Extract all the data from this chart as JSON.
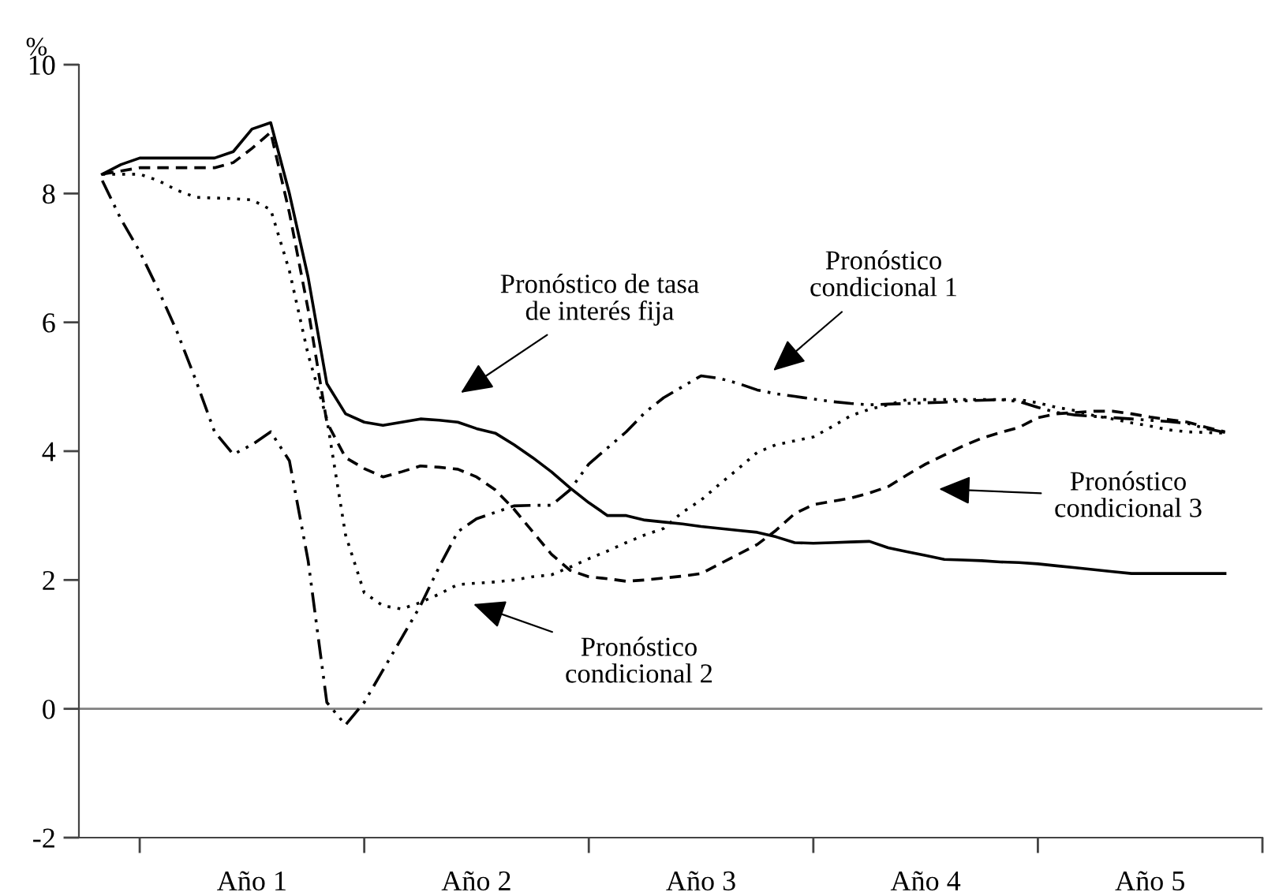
{
  "chart_data": {
    "type": "line",
    "ylabel": "%",
    "categories": [
      null,
      null,
      null,
      null,
      null,
      null,
      null,
      null,
      "Año 1",
      null,
      null,
      null,
      null,
      null,
      null,
      null,
      null,
      null,
      null,
      null,
      "Año 2",
      null,
      null,
      null,
      null,
      null,
      null,
      null,
      null,
      null,
      null,
      null,
      "Año 3",
      null,
      null,
      null,
      null,
      null,
      null,
      null,
      null,
      null,
      null,
      null,
      "Año 4",
      null,
      null,
      null,
      null,
      null,
      null,
      null,
      null,
      null,
      null,
      null,
      "Año 5",
      null,
      null,
      null,
      null
    ],
    "ylim": [
      -2,
      10
    ],
    "yticks": [
      -2,
      0,
      2,
      4,
      6,
      8,
      10
    ],
    "grid": false,
    "marker": "none",
    "ref_lines": [
      {
        "axis": "y",
        "value": 0,
        "color": "#808080"
      }
    ],
    "series": [
      {
        "color": "#000000",
        "line_style": "solid",
        "values": [
          8.3,
          8.45,
          8.55,
          8.55,
          8.55,
          8.55,
          8.55,
          8.65,
          9.0,
          9.1,
          8.0,
          6.7,
          5.05,
          4.58,
          4.45,
          4.4,
          4.45,
          4.5,
          4.48,
          4.45,
          4.35,
          4.28,
          4.1,
          3.9,
          3.68,
          3.43,
          3.2,
          3.0,
          3.0,
          2.93,
          2.9,
          2.87,
          2.83,
          2.8,
          2.77,
          2.74,
          2.67,
          2.58,
          2.57,
          2.58,
          2.59,
          2.6,
          2.5,
          2.44,
          2.38,
          2.32,
          2.31,
          2.3,
          2.28,
          2.27,
          2.25,
          2.22,
          2.19,
          2.16,
          2.13,
          2.1,
          2.1,
          2.1,
          2.1,
          2.1,
          2.1
        ]
      },
      {
        "color": "#000000",
        "line_style": "dashed",
        "values": [
          8.3,
          8.35,
          8.4,
          8.4,
          8.4,
          8.4,
          8.4,
          8.48,
          8.7,
          8.95,
          7.7,
          6.2,
          4.45,
          3.9,
          3.73,
          3.6,
          3.68,
          3.77,
          3.75,
          3.72,
          3.6,
          3.4,
          3.1,
          2.75,
          2.4,
          2.15,
          2.05,
          2.02,
          1.98,
          2.0,
          2.03,
          2.06,
          2.1,
          2.25,
          2.4,
          2.55,
          2.77,
          3.03,
          3.17,
          3.22,
          3.27,
          3.35,
          3.45,
          3.63,
          3.8,
          3.94,
          4.08,
          4.2,
          4.29,
          4.37,
          4.52,
          4.58,
          4.6,
          4.62,
          4.62,
          4.58,
          4.53,
          4.49,
          4.45,
          4.37,
          4.3
        ]
      },
      {
        "color": "#000000",
        "line_style": "dotted",
        "values": [
          8.3,
          8.3,
          8.3,
          8.2,
          8.05,
          7.94,
          7.93,
          7.92,
          7.9,
          7.75,
          6.8,
          5.5,
          4.5,
          2.7,
          1.8,
          1.6,
          1.55,
          1.65,
          1.78,
          1.93,
          1.95,
          1.97,
          2.0,
          2.05,
          2.08,
          2.2,
          2.33,
          2.45,
          2.58,
          2.7,
          2.8,
          3.05,
          3.24,
          3.49,
          3.73,
          3.98,
          4.1,
          4.16,
          4.22,
          4.38,
          4.55,
          4.65,
          4.72,
          4.8,
          4.8,
          4.8,
          4.8,
          4.8,
          4.8,
          4.8,
          4.75,
          4.68,
          4.63,
          4.55,
          4.5,
          4.44,
          4.39,
          4.33,
          4.3,
          4.29,
          4.28
        ]
      },
      {
        "color": "#000000",
        "line_style": "dashdotdot",
        "values": [
          8.2,
          7.6,
          7.1,
          6.5,
          5.85,
          5.1,
          4.3,
          3.95,
          4.1,
          4.3,
          3.85,
          2.3,
          0.1,
          -0.25,
          0.1,
          0.6,
          1.1,
          1.6,
          2.2,
          2.75,
          2.95,
          3.05,
          3.15,
          3.16,
          3.16,
          3.4,
          3.8,
          4.05,
          4.3,
          4.6,
          4.83,
          5.0,
          5.17,
          5.13,
          5.05,
          4.95,
          4.89,
          4.85,
          4.81,
          4.77,
          4.74,
          4.72,
          4.73,
          4.74,
          4.75,
          4.76,
          4.78,
          4.79,
          4.8,
          4.77,
          4.68,
          4.6,
          4.56,
          4.54,
          4.52,
          4.5,
          4.48,
          4.46,
          4.43,
          4.35,
          4.29
        ]
      }
    ],
    "annotations": [
      "Pronóstico de tasa\nde interés fija",
      "Pronóstico\ncondicional 1",
      "Pronóstico\ncondicional 3",
      "Pronóstico\ncondicional 2"
    ]
  }
}
